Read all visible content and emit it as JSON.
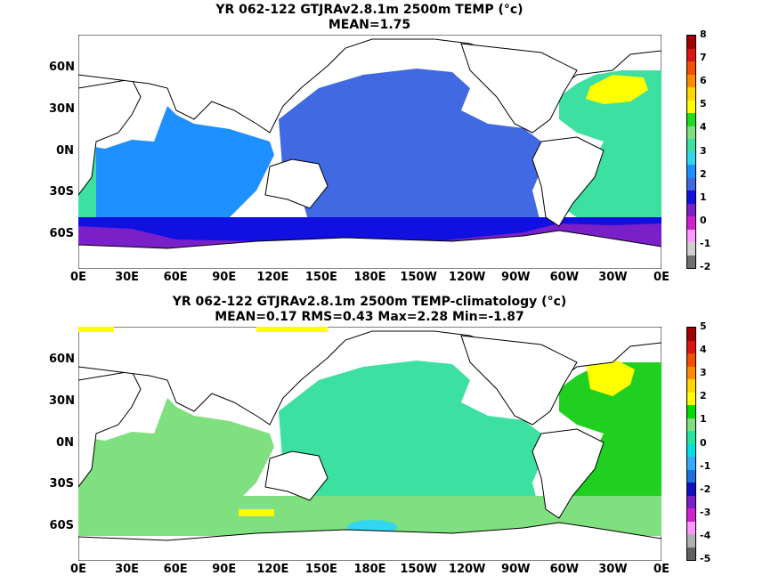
{
  "panels": [
    {
      "title_line1": "YR 062-122 GTJRAv2.8.1m 2500m TEMP (°c)",
      "title_line2": "MEAN=1.75",
      "colorbar_labels": [
        "8",
        "7",
        "6",
        "5",
        "4",
        "3",
        "2",
        "1",
        "0",
        "-1",
        "-2"
      ],
      "colorbar_colors": [
        "#a00000",
        "#dc1414",
        "#f05000",
        "#ff8c00",
        "#ffd700",
        "#ffff00",
        "#20dc20",
        "#7fe07f",
        "#3ce0a0",
        "#33d6f0",
        "#1e90ff",
        "#4169e1",
        "#1010e0",
        "#7a20c8",
        "#d020d0",
        "#ff99ff",
        "#d0d0d0",
        "#707070"
      ]
    },
    {
      "title_line1": "YR 062-122 GTJRAv2.8.1m 2500m TEMP-climatology (°c)",
      "title_line2": "MEAN=0.17   RMS=0.43   Max=2.28   Min=-1.87",
      "colorbar_labels": [
        "5",
        "4",
        "3",
        "2",
        "1",
        "0",
        "-1",
        "-2",
        "-3",
        "-4",
        "-5"
      ],
      "colorbar_colors": [
        "#a00000",
        "#dc1414",
        "#f05000",
        "#ff8c00",
        "#ffd700",
        "#ffff00",
        "#00dc00",
        "#80e080",
        "#20e8a0",
        "#00e0e0",
        "#33aaff",
        "#1e6ee0",
        "#1010c0",
        "#7a20c8",
        "#d020d0",
        "#ff99ff",
        "#b0b0b0",
        "#606060"
      ]
    }
  ],
  "lat_labels": [
    "60N",
    "30N",
    "0N",
    "30S",
    "60S"
  ],
  "lon_labels": [
    "0E",
    "30E",
    "60E",
    "90E",
    "120E",
    "150E",
    "180E",
    "150W",
    "120W",
    "90W",
    "60W",
    "30W",
    "0E"
  ],
  "colors": {
    "land": "#ffffff",
    "p1_indian": "#1e90ff",
    "p1_pacific": "#4169e1",
    "p1_atlantic": "#3ce0a0",
    "p1_southern": "#1010e0",
    "p1_antarctic": "#7a20c8",
    "p1_natl_warm": "#ffff00",
    "p2_ocean": "#3ce0a0",
    "p2_green": "#7fe07f",
    "p2_atl": "#20d020",
    "p2_warm": "#ffff00"
  }
}
